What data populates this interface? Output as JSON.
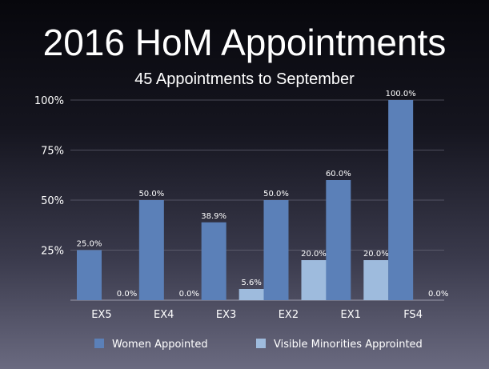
{
  "chart_data": {
    "type": "bar",
    "title": "2016 HoM Appointments",
    "subtitle": "45 Appointments to September",
    "categories": [
      "EX5",
      "EX4",
      "EX3",
      "EX2",
      "EX1",
      "FS4"
    ],
    "series": [
      {
        "name": "Women Appointed",
        "values": [
          25.0,
          50.0,
          38.9,
          50.0,
          60.0,
          100.0
        ],
        "labels": [
          "25.0%",
          "50.0%",
          "38.9%",
          "50.0%",
          "60.0%",
          "100.0%"
        ],
        "color": "#5b80b8"
      },
      {
        "name": "Visible Minorities Approinted",
        "values": [
          0.0,
          0.0,
          5.6,
          20.0,
          20.0,
          0.0
        ],
        "labels": [
          "0.0%",
          "0.0%",
          "5.6%",
          "20.0%",
          "20.0%",
          "0.0%"
        ],
        "color": "#9ebbdd"
      }
    ],
    "ylim": [
      0,
      100
    ],
    "yticks": [
      25,
      50,
      75,
      100
    ],
    "ytick_labels": [
      "25%",
      "50%",
      "75%",
      "100%"
    ],
    "grid": true,
    "legend_position": "bottom"
  }
}
